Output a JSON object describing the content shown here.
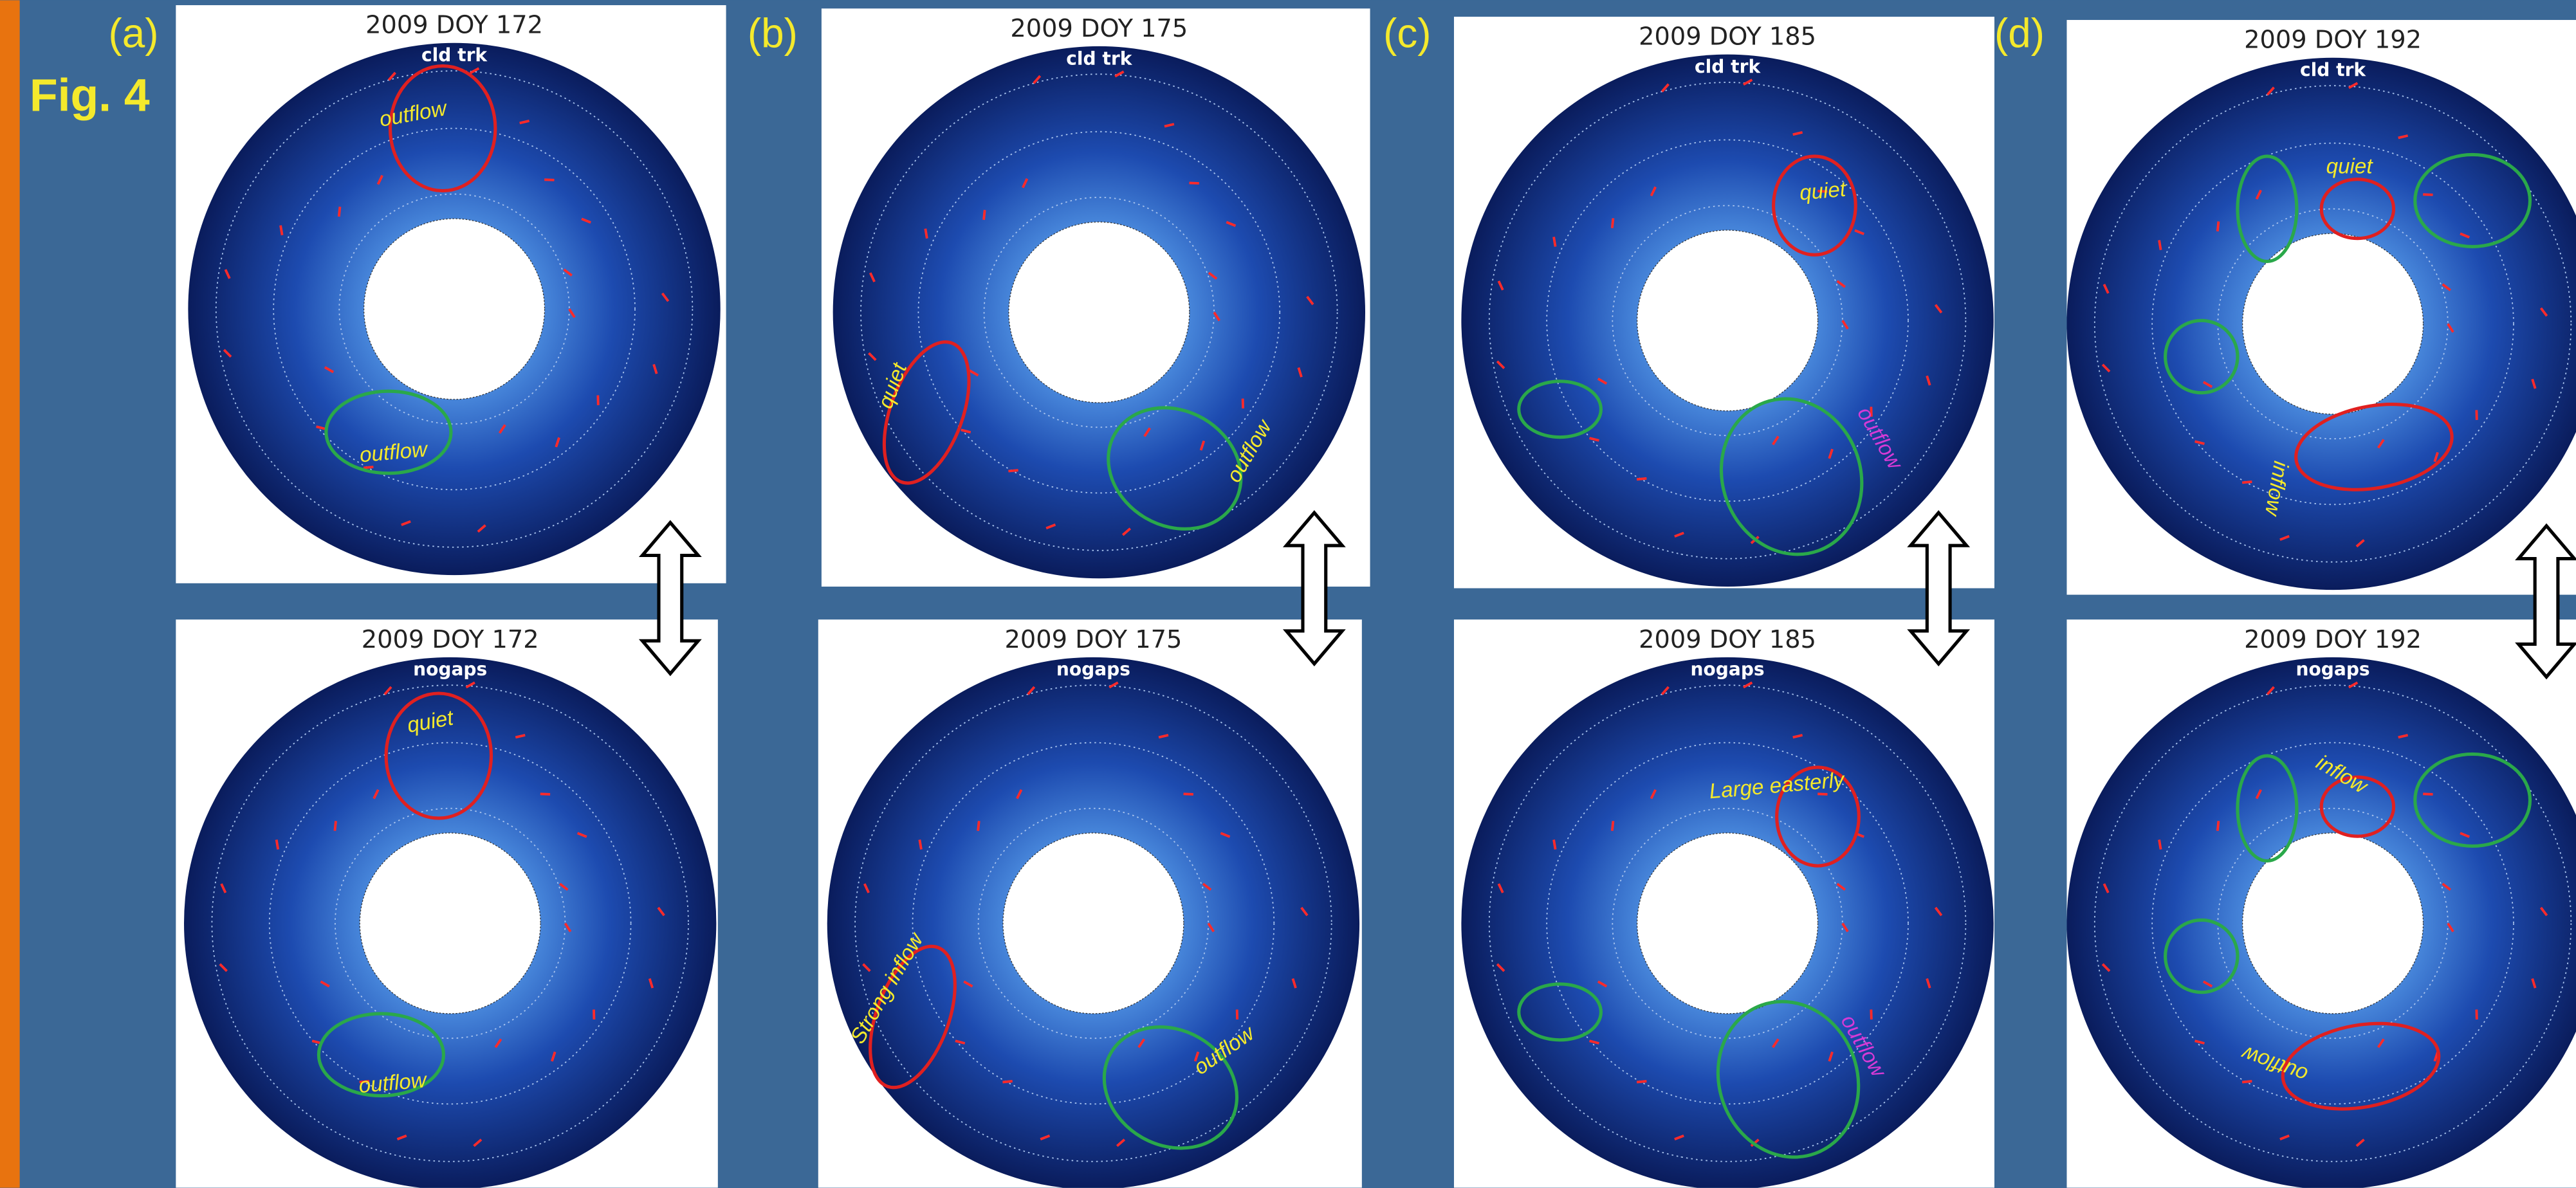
{
  "figure_label": "Fig. 4",
  "panels": [
    {
      "label": "(a)",
      "top": {
        "title": "2009 DOY 172",
        "source": "cld trk",
        "annotations": [
          {
            "text": "outflow",
            "color": "#f4e92c"
          },
          {
            "text": "outflow",
            "color": "#f4e92c"
          }
        ]
      },
      "bottom": {
        "title": "2009 DOY 172",
        "source": "nogaps",
        "annotations": [
          {
            "text": "quiet",
            "color": "#f4e92c"
          },
          {
            "text": "outflow",
            "color": "#f4e92c"
          }
        ]
      }
    },
    {
      "label": "(b)",
      "top": {
        "title": "2009 DOY 175",
        "source": "cld trk",
        "annotations": [
          {
            "text": "quiet",
            "color": "#f4e92c"
          },
          {
            "text": "outflow",
            "color": "#f4e92c"
          }
        ]
      },
      "bottom": {
        "title": "2009 DOY 175",
        "source": "nogaps",
        "annotations": [
          {
            "text": "Strong inflow",
            "color": "#f4e92c"
          },
          {
            "text": "outflow",
            "color": "#f4e92c"
          }
        ]
      }
    },
    {
      "label": "(c)",
      "top": {
        "title": "2009 DOY 185",
        "source": "cld trk",
        "annotations": [
          {
            "text": "quiet",
            "color": "#f4e92c"
          },
          {
            "text": "outflow",
            "color": "#d63ad6"
          }
        ]
      },
      "bottom": {
        "title": "2009 DOY 185",
        "source": "nogaps",
        "annotations": [
          {
            "text": "Large easterly",
            "color": "#f4e92c"
          },
          {
            "text": "outflow",
            "color": "#d63ad6"
          }
        ]
      }
    },
    {
      "label": "(d)",
      "top": {
        "title": "2009 DOY 192",
        "source": "cld trk",
        "annotations": [
          {
            "text": "quiet",
            "color": "#f4e92c"
          },
          {
            "text": "inflow",
            "color": "#f4e92c"
          }
        ]
      },
      "bottom": {
        "title": "2009 DOY 192",
        "source": "nogaps",
        "annotations": [
          {
            "text": "inflow",
            "color": "#f4e92c"
          },
          {
            "text": "outflow",
            "color": "#f4e92c"
          }
        ]
      }
    }
  ]
}
